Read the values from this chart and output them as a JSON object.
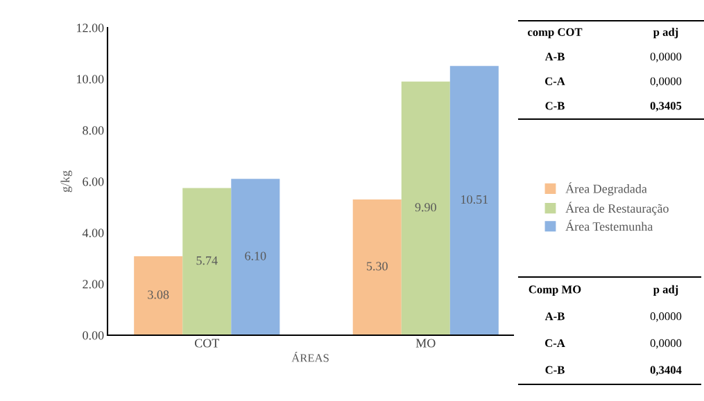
{
  "chart_data": {
    "type": "bar",
    "xlabel": "ÁREAS",
    "ylabel": "g/kg",
    "categories": [
      "COT",
      "MO"
    ],
    "series": [
      {
        "name": "Área Degradada",
        "color": "#f8c08e",
        "values": [
          3.08,
          5.3
        ],
        "value_labels": [
          "3.08",
          "5.30"
        ]
      },
      {
        "name": "Área de Restauração",
        "color": "#c5d89b",
        "values": [
          5.74,
          9.9
        ],
        "value_labels": [
          "5.74",
          "9.90"
        ]
      },
      {
        "name": "Área Testemunha",
        "color": "#8db3e2",
        "values": [
          6.1,
          10.51
        ],
        "value_labels": [
          "6.10",
          "10.51"
        ]
      }
    ],
    "ylim": [
      0,
      12
    ],
    "yticks": [
      {
        "value": 0,
        "label": "0.00"
      },
      {
        "value": 2,
        "label": "2.00"
      },
      {
        "value": 4,
        "label": "4.00"
      },
      {
        "value": 6,
        "label": "6.00"
      },
      {
        "value": 8,
        "label": "8.00"
      },
      {
        "value": 10,
        "label": "10.00"
      },
      {
        "value": 12,
        "label": "12.00"
      }
    ],
    "grid": false,
    "legend": "right",
    "annotations": [
      "comp COT",
      "p adj",
      "A-B",
      "0,0000",
      "C-A",
      "0,0000",
      "C-B",
      "0,3405",
      "Comp MO",
      "p adj",
      "A-B",
      "0,0000",
      "C-A",
      "0,0000",
      "C-B",
      "0,3404"
    ]
  }
}
